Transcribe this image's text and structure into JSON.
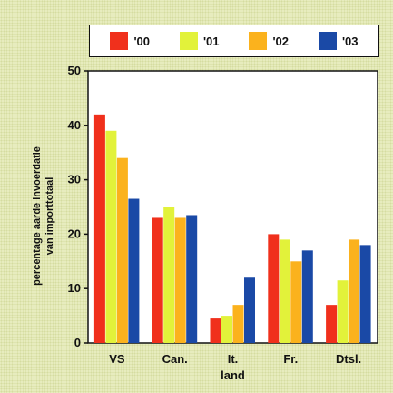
{
  "chart_data": {
    "type": "bar",
    "xlabel": "land",
    "ylabel_lines": [
      "percentage aarde invoerdatie",
      "van importtotaal"
    ],
    "categories": [
      "VS",
      "Can.",
      "It.",
      "Fr.",
      "Dtsl."
    ],
    "ylim": [
      0,
      50
    ],
    "yticks": [
      "0",
      "10",
      "20",
      "30",
      "40",
      "50"
    ],
    "grid": false,
    "legend_position": "top",
    "series": [
      {
        "name": "'00",
        "color": "#f0301c",
        "values": [
          42,
          23,
          4.5,
          20,
          7
        ]
      },
      {
        "name": "'01",
        "color": "#e2f23a",
        "values": [
          39,
          25,
          5,
          19,
          11.5
        ]
      },
      {
        "name": "'02",
        "color": "#fbb21d",
        "values": [
          34,
          23,
          7,
          15,
          19
        ]
      },
      {
        "name": "'03",
        "color": "#1a49a6",
        "values": [
          26.5,
          23.5,
          12,
          17,
          18
        ]
      }
    ]
  }
}
